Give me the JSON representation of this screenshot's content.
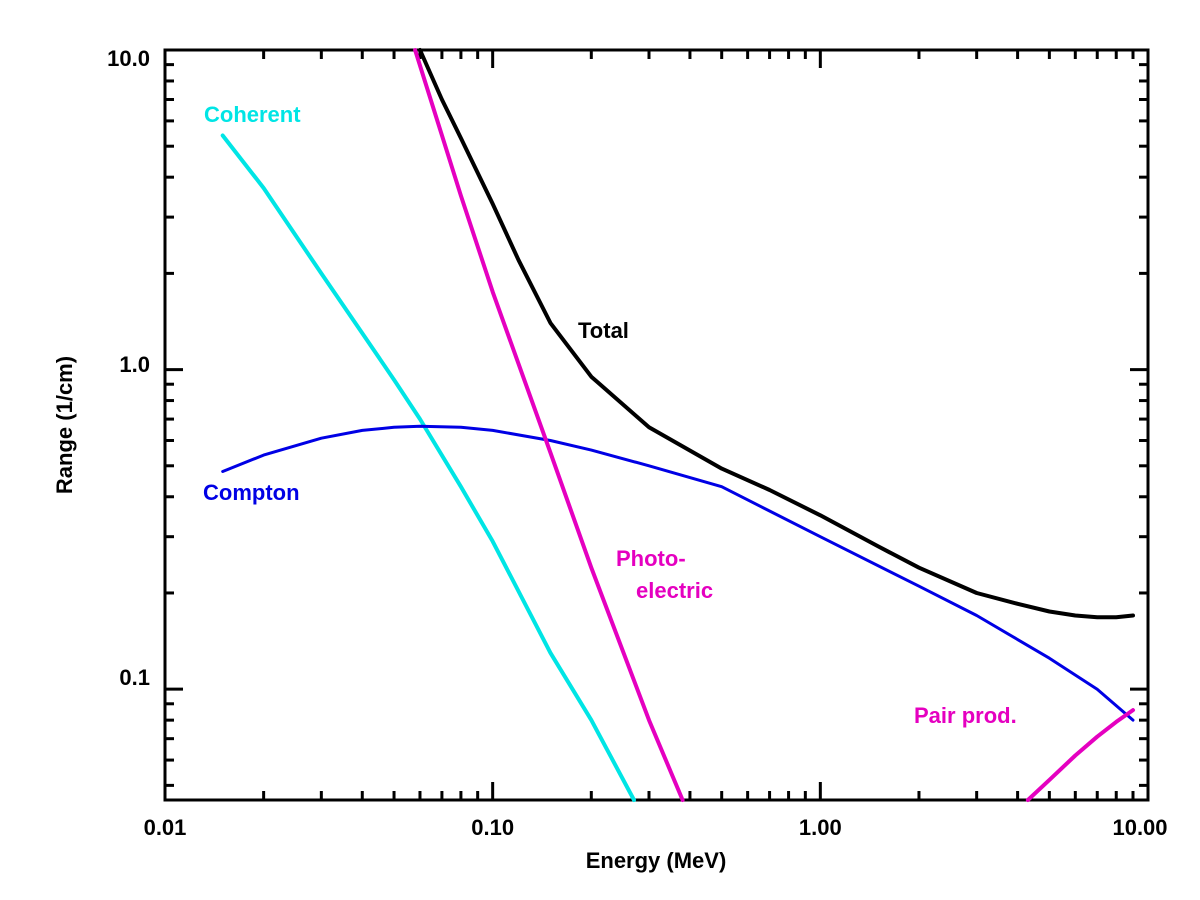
{
  "chart_data": {
    "type": "line",
    "title": "",
    "xlabel": "Energy (MeV)",
    "ylabel": "Range (1/cm)",
    "xscale": "log",
    "yscale": "log",
    "xlim": [
      0.01,
      10.0
    ],
    "ylim": [
      0.045,
      10.0
    ],
    "grid": false,
    "legend": "none",
    "x_tick_labels": [
      "0.01",
      "0.10",
      "1.00",
      "10.00"
    ],
    "y_tick_labels": [
      "0.1",
      "1.0",
      "10.0"
    ],
    "series": [
      {
        "name": "Total",
        "color": "#000000",
        "x": [
          0.06,
          0.07,
          0.08,
          0.1,
          0.12,
          0.15,
          0.2,
          0.3,
          0.5,
          0.7,
          1.0,
          1.5,
          2.0,
          3.0,
          4.0,
          5.0,
          6.0,
          7.0,
          8.0,
          9.0
        ],
        "y": [
          10.0,
          7.0,
          5.3,
          3.3,
          2.2,
          1.4,
          0.95,
          0.66,
          0.49,
          0.42,
          0.35,
          0.28,
          0.24,
          0.2,
          0.185,
          0.175,
          0.17,
          0.168,
          0.168,
          0.17
        ]
      },
      {
        "name": "Coherent",
        "color": "#00e5e5",
        "x": [
          0.015,
          0.02,
          0.03,
          0.04,
          0.05,
          0.06,
          0.08,
          0.1,
          0.15,
          0.2,
          0.27
        ],
        "y": [
          5.4,
          3.7,
          2.0,
          1.3,
          0.93,
          0.7,
          0.43,
          0.29,
          0.13,
          0.08,
          0.045
        ]
      },
      {
        "name": "Compton",
        "color": "#0000e5",
        "x": [
          0.015,
          0.02,
          0.03,
          0.04,
          0.05,
          0.06,
          0.08,
          0.1,
          0.15,
          0.2,
          0.3,
          0.5,
          1.0,
          2.0,
          3.0,
          5.0,
          7.0,
          9.0
        ],
        "y": [
          0.48,
          0.54,
          0.61,
          0.645,
          0.66,
          0.665,
          0.66,
          0.645,
          0.6,
          0.56,
          0.5,
          0.43,
          0.3,
          0.21,
          0.17,
          0.125,
          0.1,
          0.08
        ]
      },
      {
        "name": "Photo-electric",
        "color": "#e500c0",
        "x": [
          0.058,
          0.08,
          0.1,
          0.15,
          0.2,
          0.3,
          0.38
        ],
        "y": [
          10.0,
          3.5,
          1.75,
          0.55,
          0.24,
          0.08,
          0.045
        ]
      },
      {
        "name": "Pair prod.",
        "color": "#e500c0",
        "x": [
          4.3,
          5.0,
          6.0,
          7.0,
          8.0,
          9.0
        ],
        "y": [
          0.045,
          0.052,
          0.062,
          0.071,
          0.079,
          0.086
        ]
      }
    ],
    "labels": {
      "total": "Total",
      "coherent": "Coherent",
      "compton": "Compton",
      "photo_1": "Photo-",
      "photo_2": "electric",
      "pair": "Pair prod."
    }
  }
}
